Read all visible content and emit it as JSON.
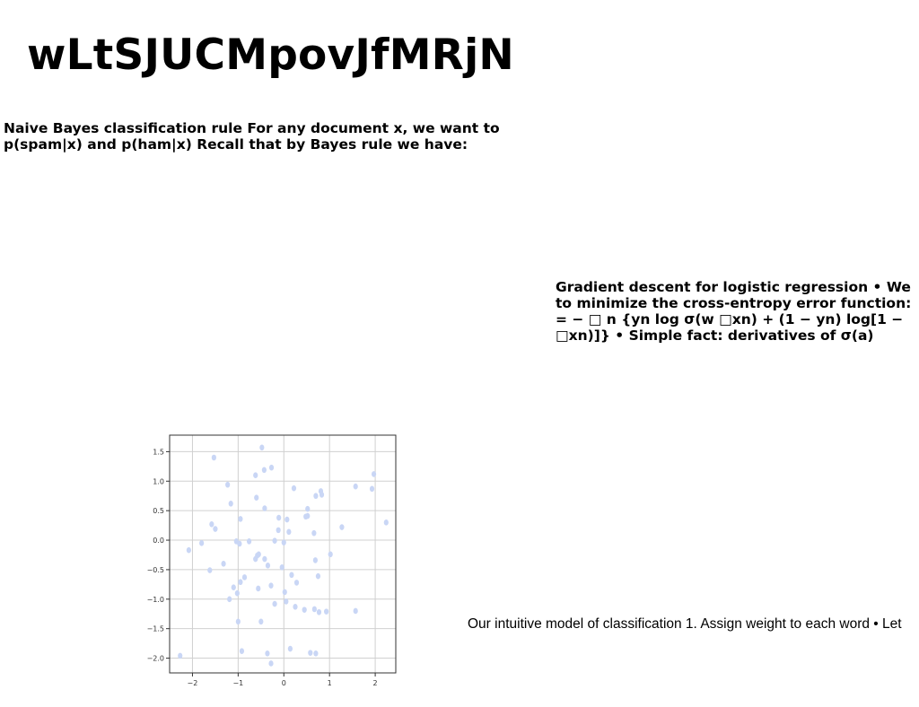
{
  "slide": {
    "title": "wLtSJUCMpovJfMRjN",
    "text_block_1": "Naive Bayes classification rule For any document x, we want to p(spam|x) and p(ham|x) Recall that by Bayes rule we have:",
    "text_block_2_lines": [
      "Gradient descent for logistic regression • We",
      "to minimize the cross-entropy error function:",
      "= − □ n {yn log σ(w □xn) + (1 − yn) log[1 −",
      "□xn)]} • Simple fact: derivatives of σ(a)"
    ],
    "caption": "Our intuitive model of classification 1. Assign weight to each word • Let"
  },
  "chart_data": {
    "type": "scatter",
    "title": "",
    "xlabel": "",
    "ylabel": "",
    "xlim": [
      -2.5,
      2.45
    ],
    "ylim": [
      -2.25,
      1.78
    ],
    "xticks": [
      -2,
      -1,
      0,
      1,
      2
    ],
    "yticks": [
      -2.0,
      -1.5,
      -1.0,
      -0.5,
      0.0,
      0.5,
      1.0,
      1.5
    ],
    "xtick_labels": [
      "−2",
      "−1",
      "0",
      "1",
      "2"
    ],
    "ytick_labels": [
      "−2.0",
      "−1.5",
      "−1.0",
      "−0.5",
      "0.0",
      "0.5",
      "1.0",
      "1.5"
    ],
    "grid": true,
    "point_color": "#c9d6f5",
    "points": [
      [
        -0.48,
        1.57
      ],
      [
        -1.53,
        1.4
      ],
      [
        -0.27,
        1.23
      ],
      [
        -0.43,
        1.19
      ],
      [
        -0.62,
        1.1
      ],
      [
        1.97,
        1.12
      ],
      [
        -1.23,
        0.94
      ],
      [
        0.22,
        0.88
      ],
      [
        1.57,
        0.91
      ],
      [
        1.93,
        0.87
      ],
      [
        0.81,
        0.83
      ],
      [
        0.83,
        0.77
      ],
      [
        0.7,
        0.75
      ],
      [
        -0.6,
        0.72
      ],
      [
        -1.16,
        0.62
      ],
      [
        0.52,
        0.53
      ],
      [
        -0.42,
        0.54
      ],
      [
        0.48,
        0.4
      ],
      [
        0.52,
        0.41
      ],
      [
        -0.95,
        0.36
      ],
      [
        -0.11,
        0.38
      ],
      [
        0.07,
        0.35
      ],
      [
        -1.58,
        0.27
      ],
      [
        2.24,
        0.3
      ],
      [
        -1.5,
        0.19
      ],
      [
        -0.12,
        0.17
      ],
      [
        0.11,
        0.14
      ],
      [
        0.66,
        0.12
      ],
      [
        1.27,
        0.22
      ],
      [
        -1.04,
        -0.02
      ],
      [
        -0.2,
        -0.01
      ],
      [
        -0.76,
        -0.02
      ],
      [
        -0.97,
        -0.06
      ],
      [
        -1.8,
        -0.05
      ],
      [
        0.0,
        -0.04
      ],
      [
        -2.08,
        -0.17
      ],
      [
        1.02,
        -0.24
      ],
      [
        -0.55,
        -0.24
      ],
      [
        -0.58,
        -0.26
      ],
      [
        -0.62,
        -0.32
      ],
      [
        -0.42,
        -0.32
      ],
      [
        0.69,
        -0.34
      ],
      [
        -1.32,
        -0.4
      ],
      [
        -0.35,
        -0.43
      ],
      [
        -0.04,
        -0.46
      ],
      [
        -1.62,
        -0.51
      ],
      [
        0.17,
        -0.59
      ],
      [
        0.75,
        -0.61
      ],
      [
        -0.86,
        -0.63
      ],
      [
        -0.95,
        -0.71
      ],
      [
        0.28,
        -0.72
      ],
      [
        -1.1,
        -0.8
      ],
      [
        -0.28,
        -0.77
      ],
      [
        -0.56,
        -0.82
      ],
      [
        0.02,
        -0.88
      ],
      [
        -1.02,
        -0.9
      ],
      [
        -1.19,
        -1.0
      ],
      [
        0.05,
        -1.04
      ],
      [
        -0.2,
        -1.08
      ],
      [
        0.25,
        -1.13
      ],
      [
        0.45,
        -1.18
      ],
      [
        0.67,
        -1.17
      ],
      [
        0.77,
        -1.22
      ],
      [
        0.93,
        -1.21
      ],
      [
        1.57,
        -1.2
      ],
      [
        -0.5,
        -1.38
      ],
      [
        -1.0,
        -1.38
      ],
      [
        -0.92,
        -1.88
      ],
      [
        0.14,
        -1.84
      ],
      [
        -0.36,
        -1.92
      ],
      [
        0.58,
        -1.91
      ],
      [
        0.7,
        -1.92
      ],
      [
        -2.27,
        -1.96
      ],
      [
        -0.28,
        -2.09
      ]
    ]
  }
}
